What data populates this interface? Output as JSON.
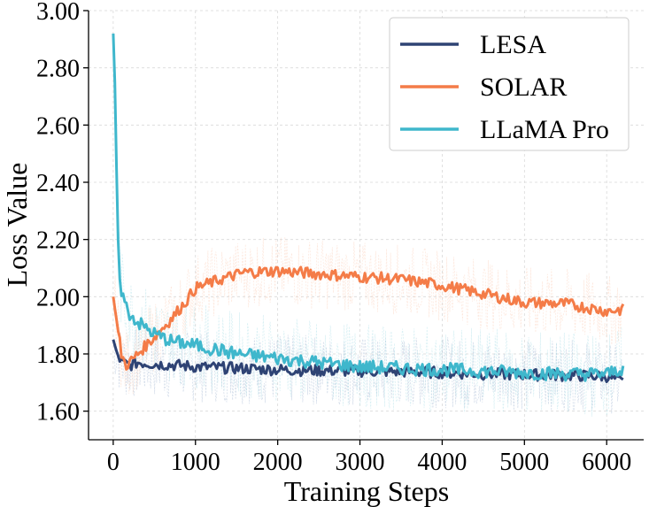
{
  "chart_data": {
    "type": "line",
    "title": "",
    "xlabel": "Training Steps",
    "ylabel": "Loss Value",
    "xlim": [
      -300,
      6450
    ],
    "ylim": [
      1.5,
      3.0
    ],
    "x_ticks": [
      0,
      1000,
      2000,
      3000,
      4000,
      5000,
      6000
    ],
    "x_tick_labels": [
      "0",
      "1000",
      "2000",
      "3000",
      "4000",
      "5000",
      "6000"
    ],
    "y_ticks": [
      1.6,
      1.8,
      2.0,
      2.2,
      2.4,
      2.6,
      2.8,
      3.0
    ],
    "y_tick_labels": [
      "1.60",
      "1.80",
      "2.00",
      "2.20",
      "2.40",
      "2.60",
      "2.80",
      "3.00"
    ],
    "grid": true,
    "legend_position": "top-right",
    "series": [
      {
        "name": "LESA",
        "color": "#2e4374",
        "raw_color": "#a9bbd6",
        "noise": 0.025,
        "x": [
          0,
          50,
          100,
          200,
          300,
          500,
          800,
          1000,
          1500,
          2000,
          2500,
          3000,
          3500,
          4000,
          4500,
          5000,
          5500,
          6000,
          6200
        ],
        "values": [
          1.85,
          1.8,
          1.77,
          1.76,
          1.77,
          1.765,
          1.76,
          1.755,
          1.75,
          1.745,
          1.742,
          1.74,
          1.738,
          1.735,
          1.73,
          1.728,
          1.725,
          1.722,
          1.7
        ]
      },
      {
        "name": "SOLAR",
        "color": "#f47c48",
        "raw_color": "#fbd3c0",
        "noise": 0.025,
        "x": [
          0,
          50,
          100,
          150,
          200,
          300,
          500,
          700,
          900,
          1000,
          1300,
          1600,
          2000,
          2500,
          3000,
          3500,
          4000,
          4500,
          5000,
          5500,
          6000,
          6200
        ],
        "values": [
          2.0,
          1.9,
          1.8,
          1.76,
          1.77,
          1.8,
          1.86,
          1.92,
          1.99,
          2.03,
          2.06,
          2.085,
          2.09,
          2.08,
          2.07,
          2.06,
          2.04,
          2.01,
          1.98,
          1.975,
          1.95,
          1.955
        ]
      },
      {
        "name": "LLaMA Pro",
        "color": "#3fb7cc",
        "raw_color": "#b5e1ea",
        "noise": 0.03,
        "x": [
          0,
          20,
          40,
          60,
          80,
          100,
          150,
          200,
          300,
          400,
          500,
          700,
          1000,
          1500,
          2000,
          2500,
          3000,
          3500,
          4000,
          4500,
          5000,
          5500,
          6000,
          6200
        ],
        "values": [
          2.92,
          2.75,
          2.45,
          2.2,
          2.08,
          2.02,
          1.97,
          1.94,
          1.91,
          1.89,
          1.87,
          1.845,
          1.83,
          1.8,
          1.785,
          1.77,
          1.755,
          1.75,
          1.745,
          1.74,
          1.735,
          1.73,
          1.73,
          1.75
        ]
      }
    ]
  }
}
